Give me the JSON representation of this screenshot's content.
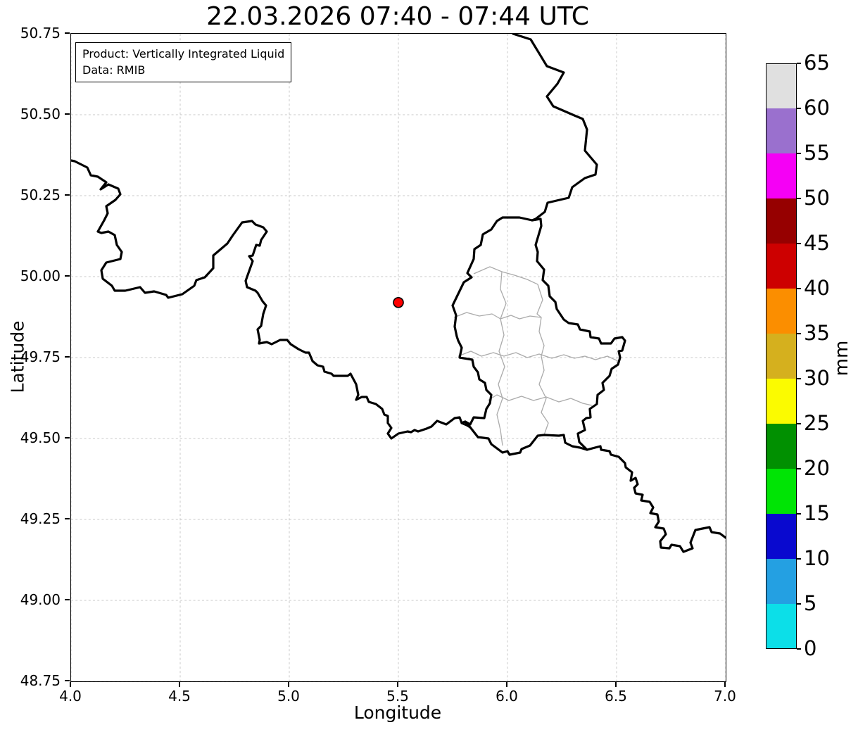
{
  "title": "22.03.2026 07:40 - 07:44 UTC",
  "annotation": {
    "lines": [
      "Product: Vertically Integrated Liquid",
      "Data: RMIB"
    ]
  },
  "chart_data": {
    "type": "map",
    "title": "22.03.2026 07:40 - 07:44 UTC",
    "product": "Vertically Integrated Liquid",
    "data_source": "RMIB",
    "xlabel": "Longitude",
    "ylabel": "Latitude",
    "xlim": [
      4.0,
      7.0
    ],
    "ylim": [
      48.75,
      50.75
    ],
    "grid": true,
    "x_ticks": [
      4.0,
      4.5,
      5.0,
      5.5,
      6.0,
      6.5,
      7.0
    ],
    "x_tick_labels": [
      "4.0",
      "4.5",
      "5.0",
      "5.5",
      "6.0",
      "6.5",
      "7.0"
    ],
    "y_ticks": [
      48.75,
      49.0,
      49.25,
      49.5,
      49.75,
      50.0,
      50.25,
      50.5,
      50.75
    ],
    "y_tick_labels": [
      "48.75",
      "49.00",
      "49.25",
      "49.50",
      "49.75",
      "50.00",
      "50.25",
      "50.50",
      "50.75"
    ],
    "points": [
      {
        "lon": 5.5,
        "lat": 49.92,
        "marker": "circle",
        "radius": 7,
        "color": "#ff0000",
        "edge": "#000000"
      }
    ],
    "colorbar": {
      "label": "mm",
      "vmin": 0,
      "vmax": 65,
      "ticks": [
        0,
        5,
        10,
        15,
        20,
        25,
        30,
        35,
        40,
        45,
        50,
        55,
        60,
        65
      ],
      "segments": [
        {
          "from": 0,
          "to": 5,
          "color": "#0cdfe8"
        },
        {
          "from": 5,
          "to": 10,
          "color": "#24a0e2"
        },
        {
          "from": 10,
          "to": 15,
          "color": "#0909cf"
        },
        {
          "from": 15,
          "to": 20,
          "color": "#00e405"
        },
        {
          "from": 20,
          "to": 25,
          "color": "#019001"
        },
        {
          "from": 25,
          "to": 30,
          "color": "#fbfb00"
        },
        {
          "from": 30,
          "to": 35,
          "color": "#d5b01e"
        },
        {
          "from": 35,
          "to": 40,
          "color": "#fb8e00"
        },
        {
          "from": 40,
          "to": 45,
          "color": "#cd0000"
        },
        {
          "from": 45,
          "to": 50,
          "color": "#960000"
        },
        {
          "from": 50,
          "to": 55,
          "color": "#f500f5"
        },
        {
          "from": 55,
          "to": 60,
          "color": "#9a70ce"
        },
        {
          "from": 60,
          "to": 65,
          "color": "#e0e0e0"
        }
      ]
    }
  },
  "map": {
    "note": "polyline vertices in plot-pixel coords, plot box 930x920 = lon 4..7 x lat 50.75..48.75",
    "country_borders": [
      [
        [
          628,
          0
        ],
        [
          653,
          8
        ],
        [
          676,
          46
        ],
        [
          700,
          55
        ],
        [
          691,
          71
        ],
        [
          676,
          89
        ],
        [
          685,
          103
        ],
        [
          715,
          116
        ],
        [
          727,
          121
        ],
        [
          733,
          136
        ],
        [
          730,
          166
        ],
        [
          747,
          186
        ],
        [
          745,
          200
        ],
        [
          730,
          205
        ],
        [
          712,
          218
        ],
        [
          707,
          233
        ],
        [
          677,
          240
        ],
        [
          673,
          253
        ],
        [
          660,
          263
        ],
        [
          655,
          265
        ]
      ],
      [
        [
          655,
          265
        ],
        [
          637,
          261
        ],
        [
          613,
          261
        ],
        [
          605,
          266
        ],
        [
          597,
          278
        ],
        [
          585,
          285
        ],
        [
          582,
          300
        ],
        [
          573,
          306
        ],
        [
          572,
          320
        ],
        [
          563,
          340
        ],
        [
          569,
          346
        ],
        [
          558,
          353
        ],
        [
          542,
          386
        ],
        [
          547,
          400
        ],
        [
          545,
          416
        ],
        [
          548,
          430
        ],
        [
          550,
          436
        ],
        [
          555,
          446
        ],
        [
          552,
          460
        ],
        [
          570,
          463
        ],
        [
          572,
          473
        ],
        [
          578,
          481
        ],
        [
          580,
          491
        ],
        [
          588,
          496
        ],
        [
          590,
          506
        ],
        [
          597,
          513
        ],
        [
          595,
          525
        ],
        [
          590,
          533
        ],
        [
          587,
          546
        ],
        [
          572,
          545
        ],
        [
          567,
          555
        ],
        [
          560,
          551
        ],
        [
          555,
          553
        ],
        [
          562,
          556
        ],
        [
          567,
          559
        ],
        [
          578,
          573
        ],
        [
          593,
          575
        ],
        [
          597,
          583
        ],
        [
          613,
          595
        ],
        [
          620,
          593
        ],
        [
          623,
          598
        ],
        [
          638,
          595
        ],
        [
          640,
          590
        ],
        [
          652,
          585
        ],
        [
          663,
          571
        ],
        [
          672,
          570
        ],
        [
          693,
          571
        ],
        [
          700,
          570
        ],
        [
          702,
          581
        ],
        [
          712,
          586
        ],
        [
          723,
          588
        ],
        [
          733,
          591
        ],
        [
          722,
          580
        ],
        [
          720,
          568
        ],
        [
          730,
          563
        ],
        [
          727,
          550
        ],
        [
          732,
          546
        ],
        [
          738,
          545
        ],
        [
          737,
          533
        ],
        [
          747,
          526
        ],
        [
          748,
          513
        ],
        [
          757,
          506
        ],
        [
          755,
          496
        ],
        [
          765,
          486
        ],
        [
          768,
          476
        ],
        [
          777,
          470
        ],
        [
          780,
          460
        ],
        [
          778,
          451
        ],
        [
          783,
          450
        ],
        [
          787,
          436
        ],
        [
          783,
          431
        ],
        [
          772,
          433
        ],
        [
          767,
          440
        ],
        [
          753,
          440
        ],
        [
          750,
          433
        ],
        [
          738,
          431
        ],
        [
          737,
          423
        ],
        [
          723,
          420
        ],
        [
          720,
          413
        ],
        [
          707,
          411
        ],
        [
          700,
          406
        ],
        [
          690,
          391
        ],
        [
          688,
          381
        ],
        [
          680,
          373
        ],
        [
          678,
          358
        ],
        [
          670,
          350
        ],
        [
          672,
          335
        ],
        [
          662,
          323
        ],
        [
          663,
          310
        ],
        [
          660,
          300
        ],
        [
          668,
          273
        ],
        [
          667,
          263
        ],
        [
          655,
          265
        ]
      ],
      [
        [
          0,
          180
        ],
        [
          5,
          181
        ],
        [
          23,
          190
        ],
        [
          28,
          201
        ],
        [
          38,
          203
        ],
        [
          50,
          211
        ],
        [
          42,
          221
        ],
        [
          53,
          214
        ],
        [
          67,
          220
        ],
        [
          70,
          228
        ],
        [
          63,
          236
        ],
        [
          50,
          245
        ],
        [
          52,
          255
        ],
        [
          47,
          265
        ],
        [
          38,
          281
        ],
        [
          43,
          283
        ],
        [
          53,
          281
        ],
        [
          62,
          286
        ],
        [
          65,
          300
        ],
        [
          72,
          310
        ],
        [
          70,
          320
        ],
        [
          50,
          325
        ],
        [
          43,
          336
        ],
        [
          45,
          348
        ],
        [
          58,
          358
        ],
        [
          62,
          365
        ],
        [
          77,
          365
        ],
        [
          98,
          360
        ],
        [
          105,
          368
        ],
        [
          118,
          366
        ],
        [
          135,
          371
        ],
        [
          138,
          375
        ],
        [
          158,
          370
        ],
        [
          175,
          358
        ],
        [
          178,
          350
        ],
        [
          190,
          346
        ],
        [
          202,
          333
        ],
        [
          202,
          315
        ],
        [
          222,
          298
        ],
        [
          230,
          286
        ],
        [
          243,
          268
        ],
        [
          257,
          266
        ],
        [
          262,
          271
        ],
        [
          273,
          275
        ],
        [
          278,
          281
        ],
        [
          270,
          293
        ],
        [
          268,
          301
        ],
        [
          263,
          300
        ],
        [
          258,
          315
        ],
        [
          253,
          316
        ],
        [
          258,
          323
        ],
        [
          248,
          351
        ],
        [
          250,
          360
        ],
        [
          262,
          365
        ],
        [
          265,
          368
        ],
        [
          272,
          380
        ],
        [
          277,
          386
        ],
        [
          273,
          398
        ],
        [
          270,
          415
        ],
        [
          265,
          420
        ],
        [
          268,
          435
        ],
        [
          267,
          440
        ],
        [
          278,
          438
        ],
        [
          285,
          441
        ],
        [
          297,
          435
        ],
        [
          307,
          435
        ],
        [
          312,
          441
        ],
        [
          323,
          448
        ],
        [
          333,
          453
        ],
        [
          338,
          453
        ],
        [
          343,
          465
        ],
        [
          350,
          471
        ],
        [
          358,
          473
        ],
        [
          360,
          480
        ],
        [
          370,
          483
        ],
        [
          373,
          486
        ],
        [
          393,
          486
        ],
        [
          397,
          483
        ],
        [
          405,
          498
        ],
        [
          408,
          513
        ],
        [
          405,
          520
        ],
        [
          413,
          516
        ],
        [
          420,
          516
        ],
        [
          423,
          523
        ],
        [
          433,
          526
        ],
        [
          442,
          533
        ],
        [
          445,
          541
        ],
        [
          450,
          543
        ],
        [
          450,
          553
        ],
        [
          455,
          560
        ],
        [
          450,
          568
        ],
        [
          455,
          575
        ],
        [
          465,
          568
        ],
        [
          478,
          565
        ],
        [
          483,
          566
        ],
        [
          488,
          563
        ],
        [
          493,
          565
        ],
        [
          505,
          561
        ],
        [
          512,
          558
        ],
        [
          520,
          550
        ],
        [
          533,
          555
        ],
        [
          545,
          546
        ],
        [
          552,
          545
        ],
        [
          555,
          553
        ],
        [
          560,
          551
        ],
        [
          567,
          559
        ]
      ],
      [
        [
          733,
          591
        ],
        [
          752,
          586
        ],
        [
          753,
          591
        ],
        [
          765,
          593
        ],
        [
          767,
          598
        ],
        [
          778,
          601
        ],
        [
          787,
          610
        ],
        [
          788,
          616
        ],
        [
          797,
          623
        ],
        [
          795,
          635
        ],
        [
          802,
          631
        ],
        [
          805,
          640
        ],
        [
          800,
          645
        ],
        [
          802,
          653
        ],
        [
          812,
          655
        ],
        [
          810,
          663
        ],
        [
          822,
          665
        ],
        [
          827,
          673
        ],
        [
          823,
          681
        ],
        [
          833,
          683
        ],
        [
          835,
          693
        ],
        [
          830,
          701
        ],
        [
          842,
          703
        ],
        [
          845,
          711
        ],
        [
          837,
          721
        ],
        [
          838,
          730
        ],
        [
          850,
          731
        ],
        [
          853,
          726
        ],
        [
          865,
          728
        ],
        [
          870,
          736
        ],
        [
          883,
          731
        ],
        [
          880,
          723
        ],
        [
          887,
          705
        ],
        [
          897,
          703
        ],
        [
          907,
          701
        ],
        [
          910,
          708
        ],
        [
          922,
          710
        ],
        [
          930,
          716
        ]
      ]
    ],
    "region_borders": [
      [
        [
          572,
          341
        ],
        [
          595,
          331
        ],
        [
          612,
          338
        ],
        [
          630,
          343
        ],
        [
          648,
          349
        ],
        [
          663,
          356
        ]
      ],
      [
        [
          544,
          403
        ],
        [
          562,
          396
        ],
        [
          580,
          401
        ],
        [
          598,
          398
        ],
        [
          610,
          405
        ],
        [
          625,
          400
        ],
        [
          637,
          405
        ],
        [
          652,
          401
        ],
        [
          668,
          403
        ]
      ],
      [
        [
          612,
          338
        ],
        [
          610,
          363
        ],
        [
          618,
          383
        ],
        [
          610,
          405
        ],
        [
          615,
          428
        ],
        [
          608,
          451
        ],
        [
          616,
          473
        ],
        [
          607,
          498
        ],
        [
          613,
          518
        ],
        [
          605,
          541
        ],
        [
          610,
          563
        ],
        [
          613,
          585
        ]
      ],
      [
        [
          550,
          458
        ],
        [
          568,
          451
        ],
        [
          583,
          458
        ],
        [
          600,
          453
        ],
        [
          615,
          458
        ],
        [
          632,
          453
        ],
        [
          648,
          460
        ],
        [
          665,
          455
        ],
        [
          683,
          461
        ],
        [
          700,
          456
        ],
        [
          715,
          461
        ],
        [
          730,
          458
        ],
        [
          745,
          463
        ],
        [
          762,
          458
        ],
        [
          777,
          465
        ]
      ],
      [
        [
          663,
          356
        ],
        [
          670,
          378
        ],
        [
          662,
          398
        ],
        [
          668,
          403
        ],
        [
          665,
          423
        ],
        [
          672,
          443
        ],
        [
          668,
          458
        ],
        [
          672,
          478
        ],
        [
          665,
          498
        ],
        [
          675,
          518
        ],
        [
          668,
          538
        ],
        [
          678,
          553
        ],
        [
          672,
          570
        ]
      ],
      [
        [
          592,
          521
        ],
        [
          605,
          513
        ],
        [
          622,
          521
        ],
        [
          640,
          515
        ],
        [
          657,
          521
        ],
        [
          675,
          516
        ],
        [
          693,
          523
        ],
        [
          710,
          518
        ],
        [
          727,
          525
        ],
        [
          740,
          528
        ]
      ]
    ]
  },
  "layout_colors": {
    "gridline": "#c9c9c9",
    "country_border": "#000000",
    "region_border": "#ababab",
    "background": "#ffffff"
  }
}
